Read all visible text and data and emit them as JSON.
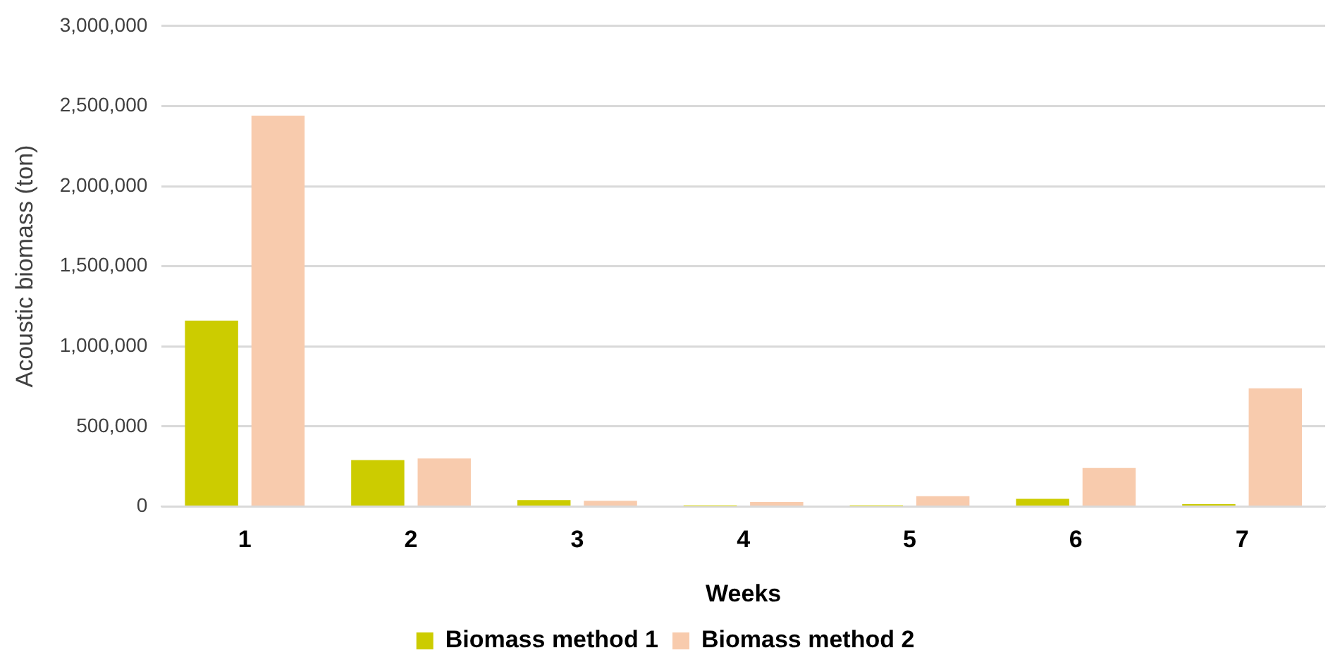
{
  "chart_data": {
    "type": "bar",
    "xlabel": "Weeks",
    "ylabel": "Acoustic biomass (ton)",
    "categories": [
      "1",
      "2",
      "3",
      "4",
      "5",
      "6",
      "7"
    ],
    "series": [
      {
        "name": "Biomass method 1",
        "color": "#cccc00",
        "values": [
          1160000,
          290000,
          40000,
          2000,
          2000,
          48000,
          15000
        ]
      },
      {
        "name": "Biomass method 2",
        "color": "#f8cbad",
        "values": [
          2440000,
          300000,
          36000,
          28000,
          65000,
          240000,
          738000
        ]
      }
    ],
    "ylim": [
      0,
      3000000
    ],
    "yticks": [
      {
        "value": 0,
        "label": "0"
      },
      {
        "value": 500000,
        "label": "500,000"
      },
      {
        "value": 1000000,
        "label": "1,000,000"
      },
      {
        "value": 1500000,
        "label": "1,500,000"
      },
      {
        "value": 2000000,
        "label": "2,000,000"
      },
      {
        "value": 2500000,
        "label": "2,500,000"
      },
      {
        "value": 3000000,
        "label": "3,000,000"
      }
    ],
    "grid": "y",
    "legend": "bottom"
  }
}
